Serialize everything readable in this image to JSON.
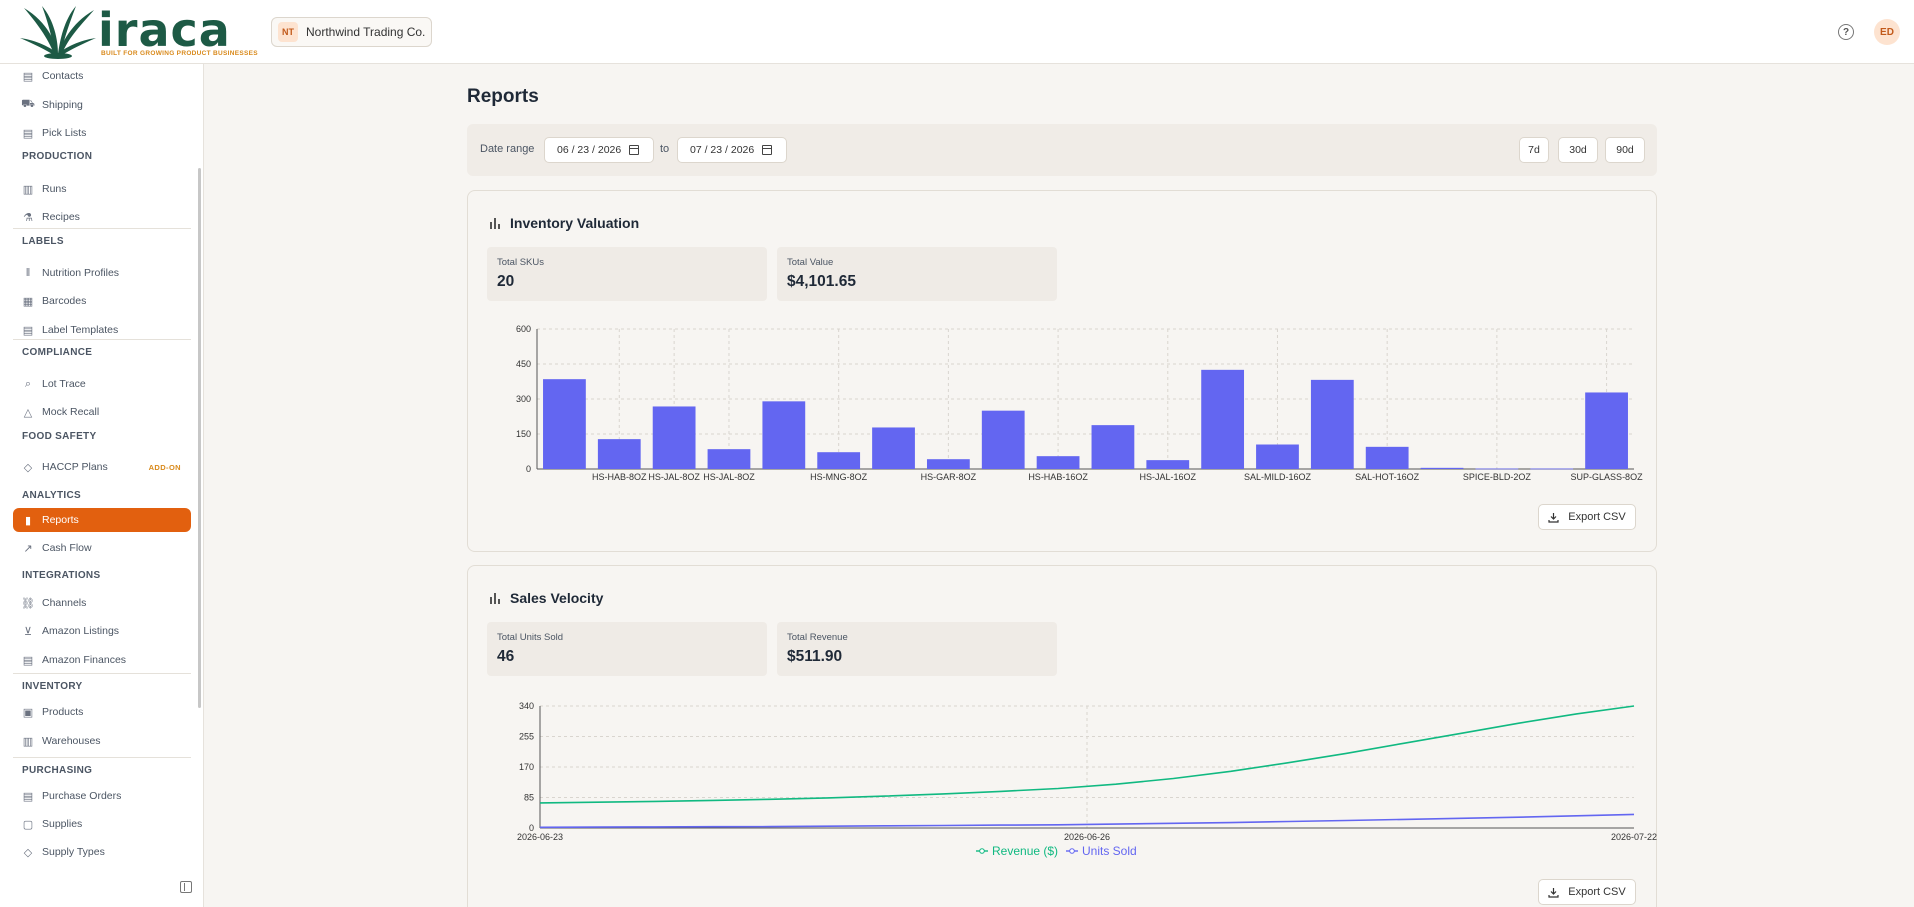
{
  "header": {
    "logo_word": "iraca",
    "logo_tagline": "BUILT FOR GROWING PRODUCT BUSINESSES",
    "org_initials": "NT",
    "org_name": "Northwind Trading Co.",
    "user_initials": "ED"
  },
  "sidebar": {
    "items_top": [
      {
        "label": "Contacts",
        "icon": "contacts-icon"
      },
      {
        "label": "Shipping",
        "icon": "truck-icon"
      },
      {
        "label": "Pick Lists",
        "icon": "clipboard-icon"
      }
    ],
    "sections": [
      {
        "title": "PRODUCTION",
        "items": [
          {
            "label": "Runs",
            "icon": "factory-icon"
          },
          {
            "label": "Recipes",
            "icon": "flask-icon"
          }
        ]
      },
      {
        "title": "LABELS",
        "items": [
          {
            "label": "Nutrition Profiles",
            "icon": "barcode-lines-icon"
          },
          {
            "label": "Barcodes",
            "icon": "qr-icon"
          },
          {
            "label": "Label Templates",
            "icon": "template-icon"
          }
        ]
      },
      {
        "title": "COMPLIANCE",
        "items": [
          {
            "label": "Lot Trace",
            "icon": "search-icon"
          },
          {
            "label": "Mock Recall",
            "icon": "warning-icon"
          }
        ]
      },
      {
        "title": "FOOD SAFETY",
        "items": [
          {
            "label": "HACCP Plans",
            "icon": "shield-icon",
            "badge": "ADD-ON"
          }
        ]
      },
      {
        "title": "ANALYTICS",
        "items": [
          {
            "label": "Reports",
            "icon": "bar-chart-icon",
            "active": true
          },
          {
            "label": "Cash Flow",
            "icon": "trend-icon"
          }
        ]
      },
      {
        "title": "INTEGRATIONS",
        "items": [
          {
            "label": "Channels",
            "icon": "channels-icon"
          },
          {
            "label": "Amazon Listings",
            "icon": "cart-icon"
          },
          {
            "label": "Amazon Finances",
            "icon": "receipt-icon"
          }
        ]
      },
      {
        "title": "INVENTORY",
        "items": [
          {
            "label": "Products",
            "icon": "box-icon"
          },
          {
            "label": "Warehouses",
            "icon": "warehouse-icon"
          }
        ]
      },
      {
        "title": "PURCHASING",
        "items": [
          {
            "label": "Purchase Orders",
            "icon": "document-icon"
          },
          {
            "label": "Supplies",
            "icon": "package-icon"
          },
          {
            "label": "Supply Types",
            "icon": "tag-icon"
          }
        ]
      }
    ]
  },
  "page": {
    "title": "Reports"
  },
  "filters": {
    "date_range_label": "Date range",
    "start_date": "06 / 23 / 2026",
    "to_label": "to",
    "end_date": "07 / 23 / 2026",
    "ranges": [
      "7d",
      "30d",
      "90d"
    ]
  },
  "inventory": {
    "title": "Inventory Valuation",
    "stats": [
      {
        "label": "Total SKUs",
        "value": "20"
      },
      {
        "label": "Total Value",
        "value": "$4,101.65"
      }
    ],
    "export_label": "Export CSV"
  },
  "sales": {
    "title": "Sales Velocity",
    "stats": [
      {
        "label": "Total Units Sold",
        "value": "46"
      },
      {
        "label": "Total Revenue",
        "value": "$511.90"
      }
    ],
    "export_label": "Export CSV"
  },
  "chart_data": [
    {
      "type": "bar",
      "title": "Inventory Valuation",
      "ylim": [
        0,
        600
      ],
      "yticks": [
        0,
        150,
        300,
        450,
        600
      ],
      "grid": true,
      "categories": [
        "",
        "HS-HAB-8OZ",
        "HS-JAL-8OZ",
        "HS-JAL-8OZ",
        "",
        "HS-MNG-8OZ",
        "",
        "HS-GAR-8OZ",
        "",
        "HS-HAB-16OZ",
        "",
        "HS-JAL-16OZ",
        "",
        "SAL-MILD-16OZ",
        "",
        "SAL-HOT-16OZ",
        "",
        "SPICE-BLD-2OZ",
        "",
        "SUP-GLASS-8OZ"
      ],
      "values": [
        385,
        128,
        268,
        85,
        290,
        72,
        178,
        42,
        250,
        55,
        188,
        38,
        425,
        105,
        382,
        95,
        5,
        2,
        2,
        328
      ],
      "color": "#6366f1"
    },
    {
      "type": "line",
      "title": "Sales Velocity",
      "ylim": [
        0,
        340
      ],
      "yticks": [
        0,
        85,
        170,
        255,
        340
      ],
      "xticks": [
        "2026-06-23",
        "2026-06-26",
        "2026-07-22"
      ],
      "grid": true,
      "legend": "bottom",
      "series": [
        {
          "name": "Revenue ($)",
          "color": "#10b981",
          "values": [
            70,
            72,
            74,
            77,
            80,
            84,
            89,
            95,
            102,
            110,
            122,
            138,
            158,
            182,
            208,
            236,
            264,
            292,
            318,
            340
          ]
        },
        {
          "name": "Units Sold",
          "color": "#6366f1",
          "values": [
            2,
            2.5,
            3,
            3.5,
            4,
            5,
            6,
            7,
            8,
            9,
            11,
            13,
            15,
            18,
            21,
            24,
            27,
            30,
            34,
            38
          ]
        }
      ]
    }
  ]
}
